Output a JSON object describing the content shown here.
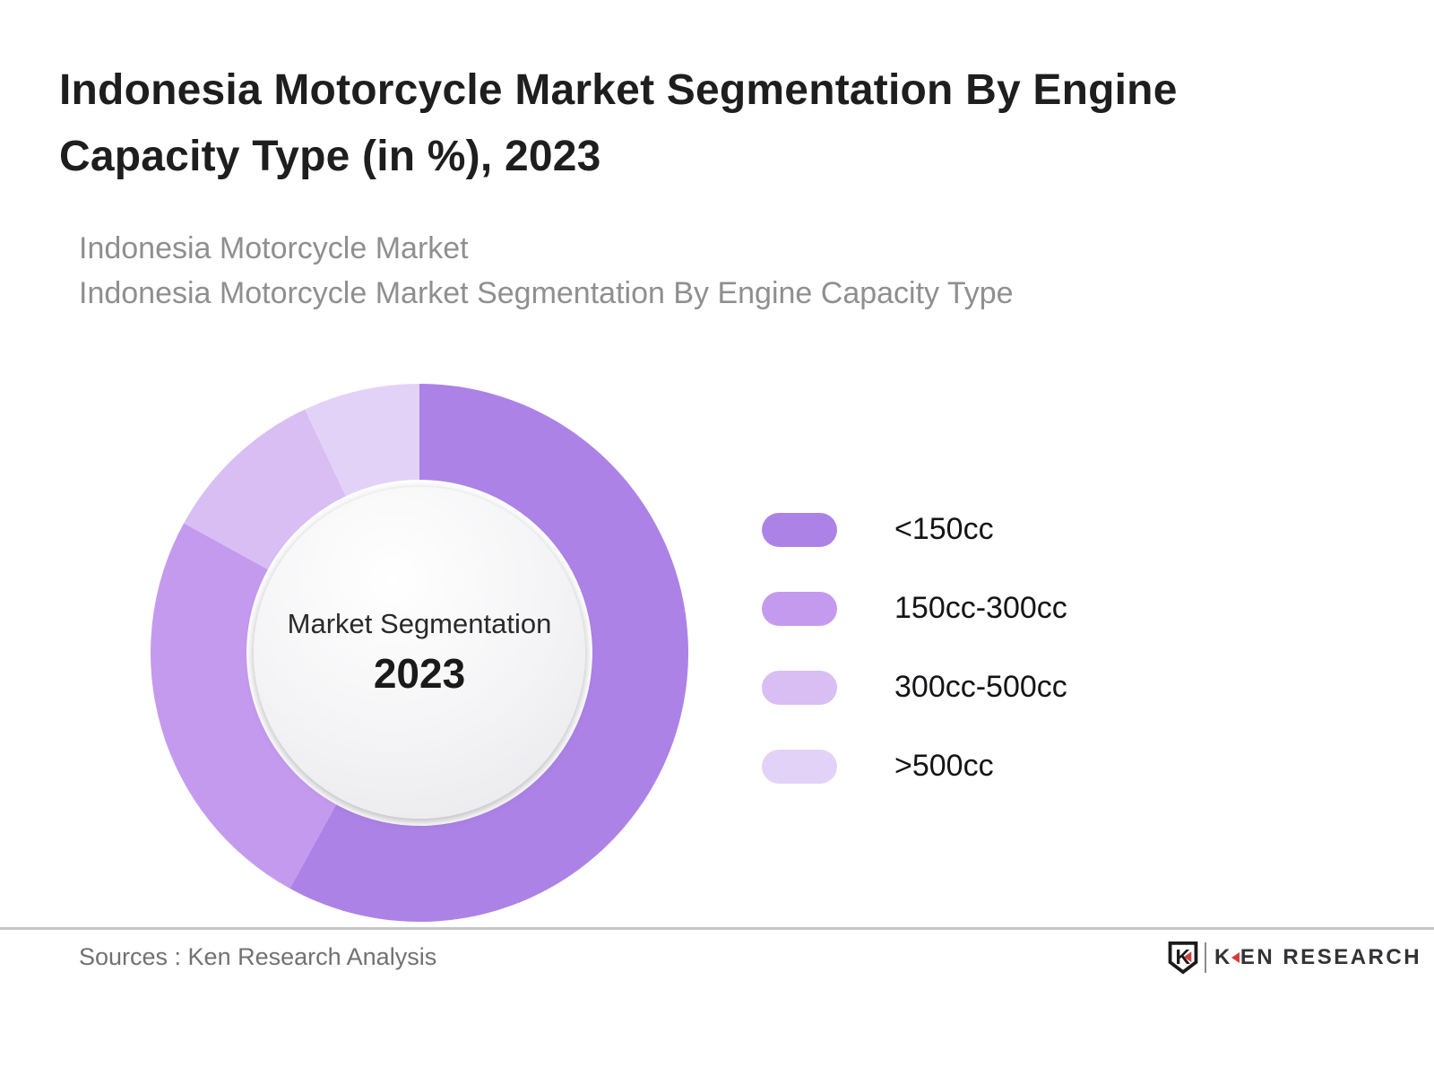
{
  "header": {
    "title": "Indonesia Motorcycle Market Segmentation By Engine Capacity Type (in %), 2023",
    "subtitle_line1": "Indonesia Motorcycle Market",
    "subtitle_line2": "Indonesia Motorcycle Market Segmentation By Engine Capacity Type"
  },
  "chart_data": {
    "type": "pie",
    "subtype": "donut",
    "title": "Indonesia Motorcycle Market Segmentation By Engine Capacity Type (in %), 2023",
    "unit": "%",
    "labels": [
      "<150cc",
      "150cc-300cc",
      "300cc-500cc",
      ">500cc"
    ],
    "values": [
      58,
      25,
      10,
      7
    ],
    "colors": [
      "#ad82e6",
      "#c49aee",
      "#d8bef3",
      "#e3d2f7"
    ],
    "start_angle_deg": 0,
    "direction": "clockwise",
    "legend_position": "right",
    "center_label": "Market Segmentation",
    "center_year": "2023"
  },
  "footer": {
    "sources": "Sources : Ken Research Analysis",
    "logo": {
      "shield_letter": "K",
      "brand_first_letter": "K",
      "brand_rest": "EN RESEARCH"
    }
  }
}
